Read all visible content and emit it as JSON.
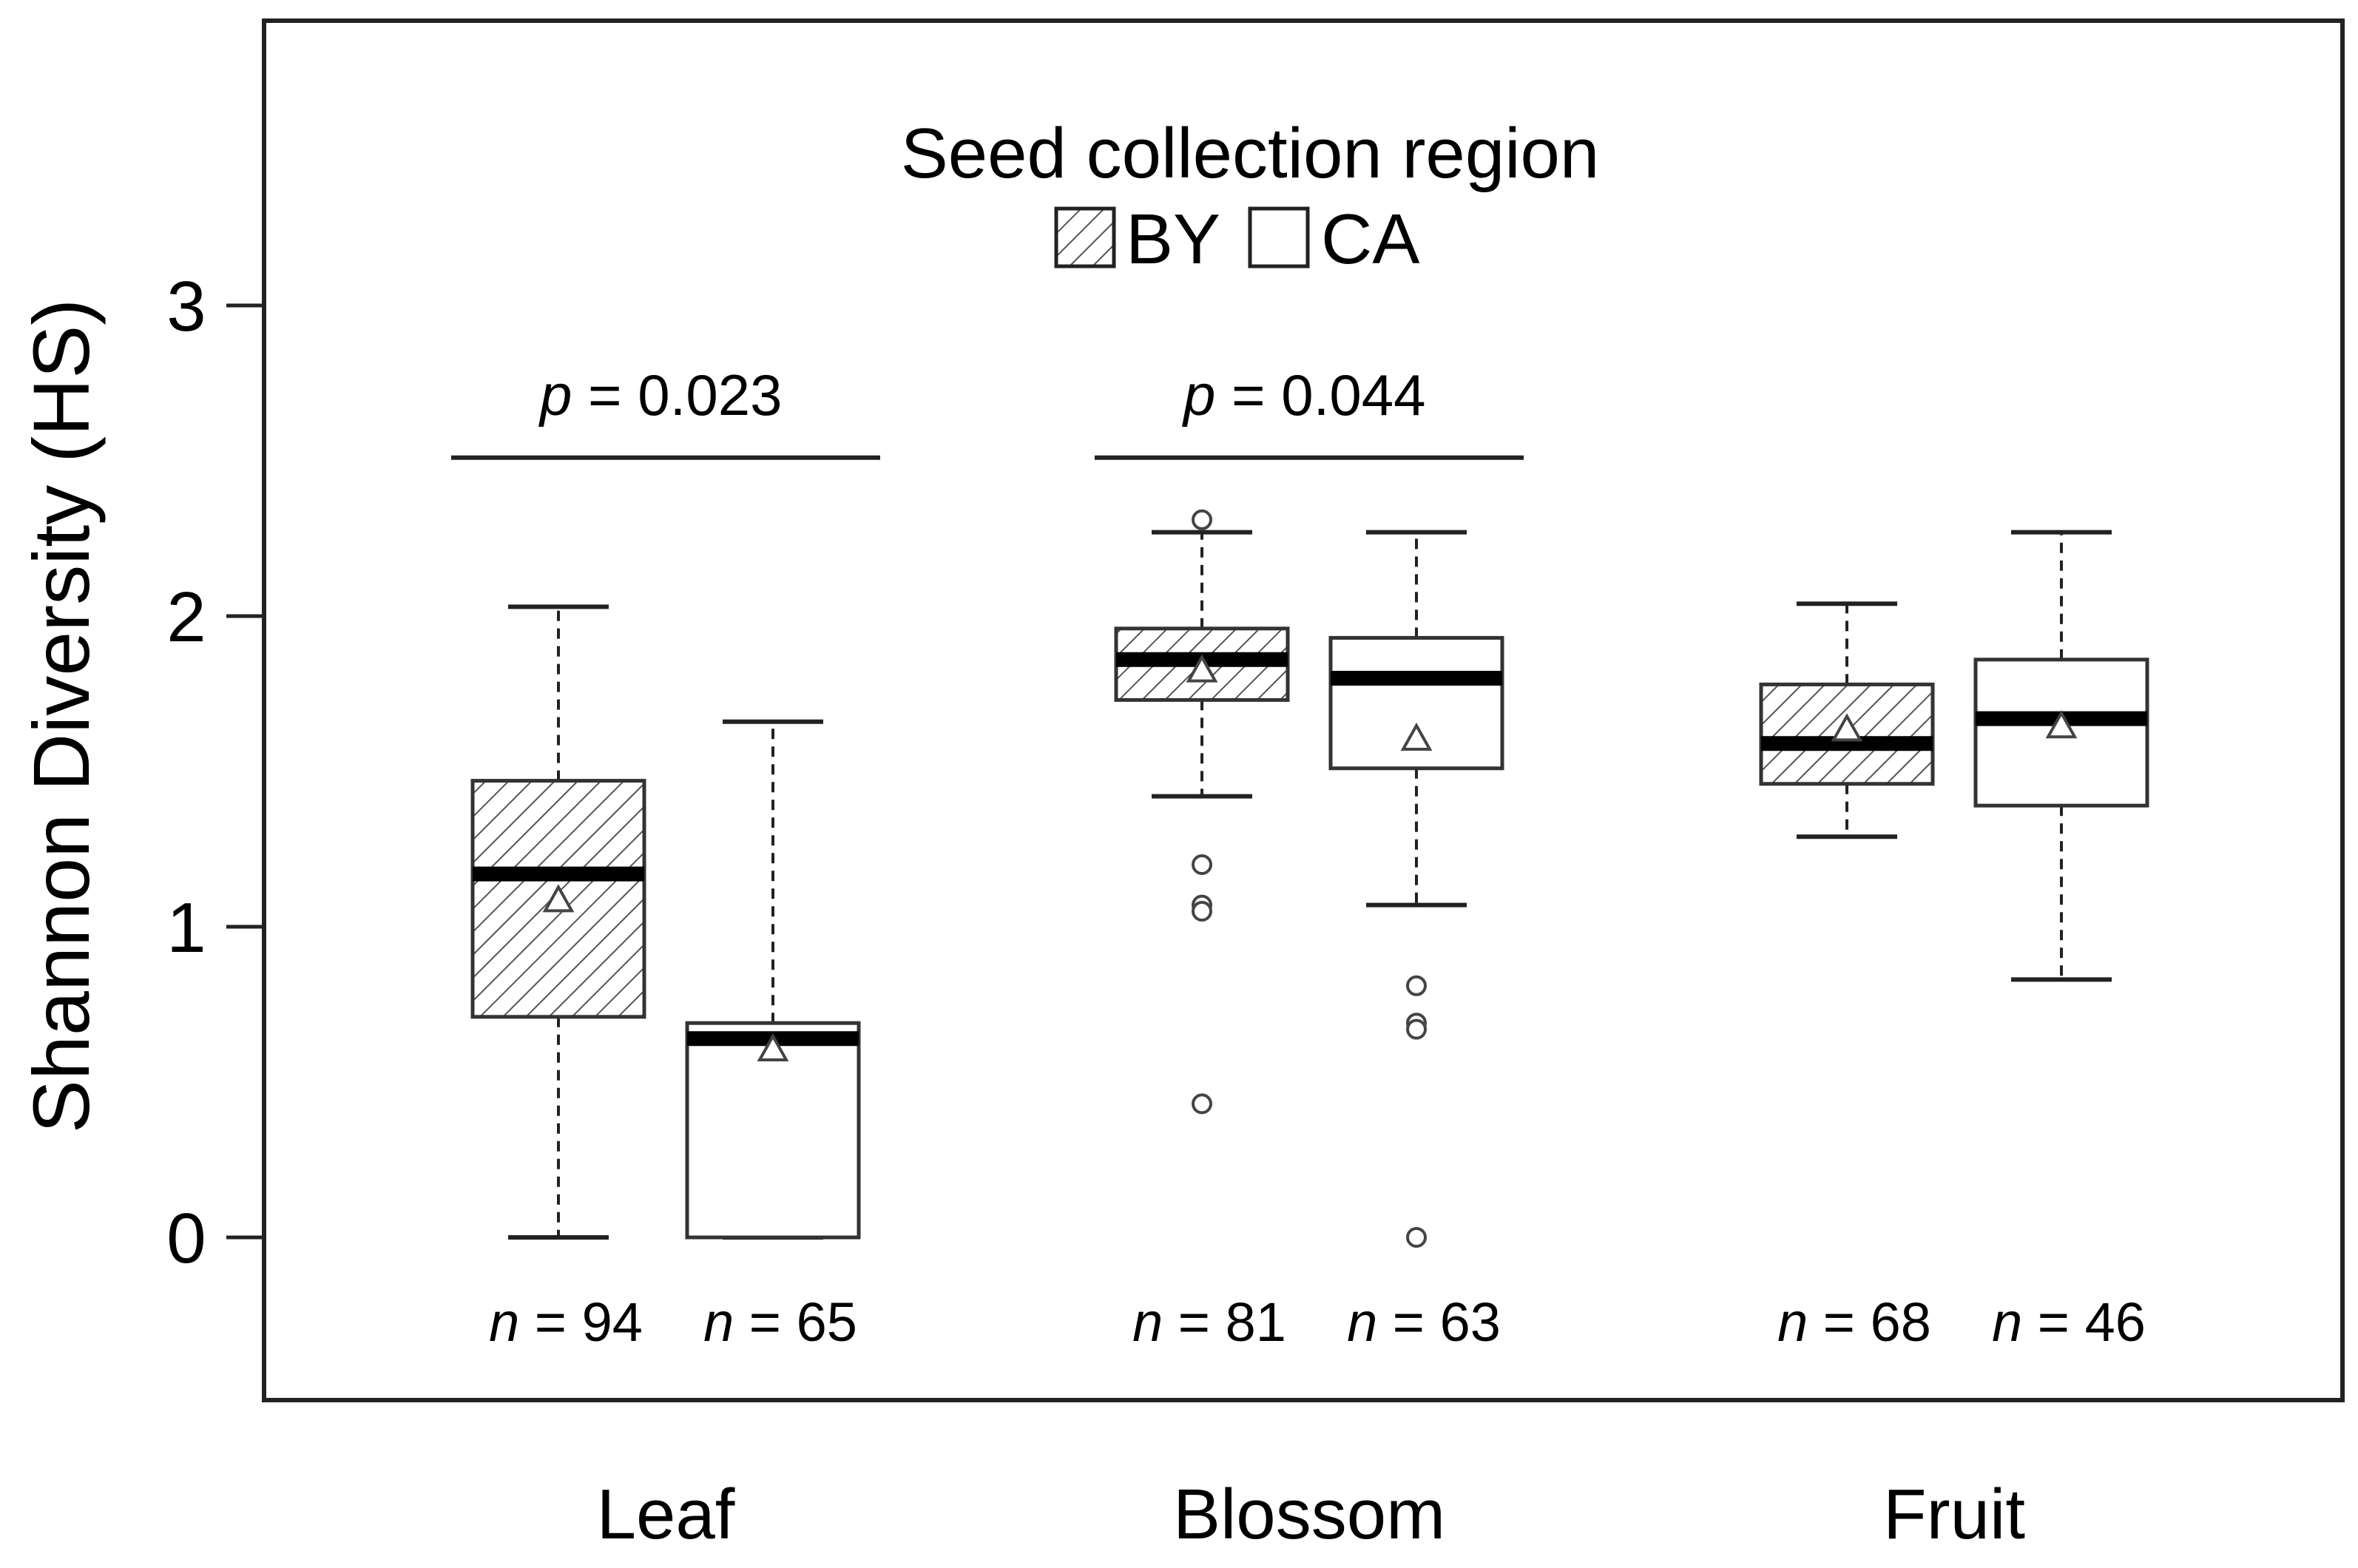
{
  "chart_data": {
    "type": "box",
    "ylabel": "Shannon Diversity (HS)",
    "ylim": [
      -0.5,
      3.9
    ],
    "yticks": [
      0,
      1,
      2,
      3
    ],
    "grid": false,
    "categories": [
      "Leaf",
      "Blossom",
      "Fruit"
    ],
    "legend": {
      "title": "Seed collection region",
      "placement": "top-center",
      "entries": [
        {
          "label": "BY",
          "pattern": "hatched"
        },
        {
          "label": "CA",
          "pattern": "open"
        }
      ]
    },
    "series": [
      {
        "name": "BY",
        "pattern": "hatched",
        "boxes": [
          {
            "category": "Leaf",
            "whisker_low": 0.0,
            "q1": 0.71,
            "median": 1.17,
            "q3": 1.47,
            "whisker_high": 2.03,
            "mean": 1.08,
            "outliers": [],
            "n_label": "94"
          },
          {
            "category": "Blossom",
            "whisker_low": 1.42,
            "q1": 1.73,
            "median": 1.86,
            "q3": 1.96,
            "whisker_high": 2.27,
            "mean": 1.82,
            "outliers": [
              2.31,
              1.2,
              1.07,
              1.05,
              0.43
            ],
            "n_label": "81"
          },
          {
            "category": "Fruit",
            "whisker_low": 1.29,
            "q1": 1.46,
            "median": 1.59,
            "q3": 1.78,
            "whisker_high": 2.04,
            "mean": 1.63,
            "outliers": [],
            "n_label": "68"
          }
        ]
      },
      {
        "name": "CA",
        "pattern": "open",
        "boxes": [
          {
            "category": "Leaf",
            "whisker_low": 0.0,
            "q1": 0.0,
            "median": 0.64,
            "q3": 0.69,
            "whisker_high": 1.66,
            "mean": 0.6,
            "outliers": [],
            "n_label": "65"
          },
          {
            "category": "Blossom",
            "whisker_low": 1.07,
            "q1": 1.51,
            "median": 1.8,
            "q3": 1.93,
            "whisker_high": 2.27,
            "mean": 1.6,
            "outliers": [
              0.81,
              0.69,
              0.67,
              0.0
            ],
            "n_label": "63"
          },
          {
            "category": "Fruit",
            "whisker_low": 0.83,
            "q1": 1.39,
            "median": 1.67,
            "q3": 1.86,
            "whisker_high": 2.27,
            "mean": 1.64,
            "outliers": [],
            "n_label": "46"
          }
        ]
      }
    ],
    "n_prefix": "n",
    "significance": [
      {
        "category": "Leaf",
        "p_symbol": "p",
        "p_text": " = 0.023",
        "y": 2.51
      },
      {
        "category": "Blossom",
        "p_symbol": "p",
        "p_text": " = 0.044",
        "y": 2.51
      }
    ]
  }
}
